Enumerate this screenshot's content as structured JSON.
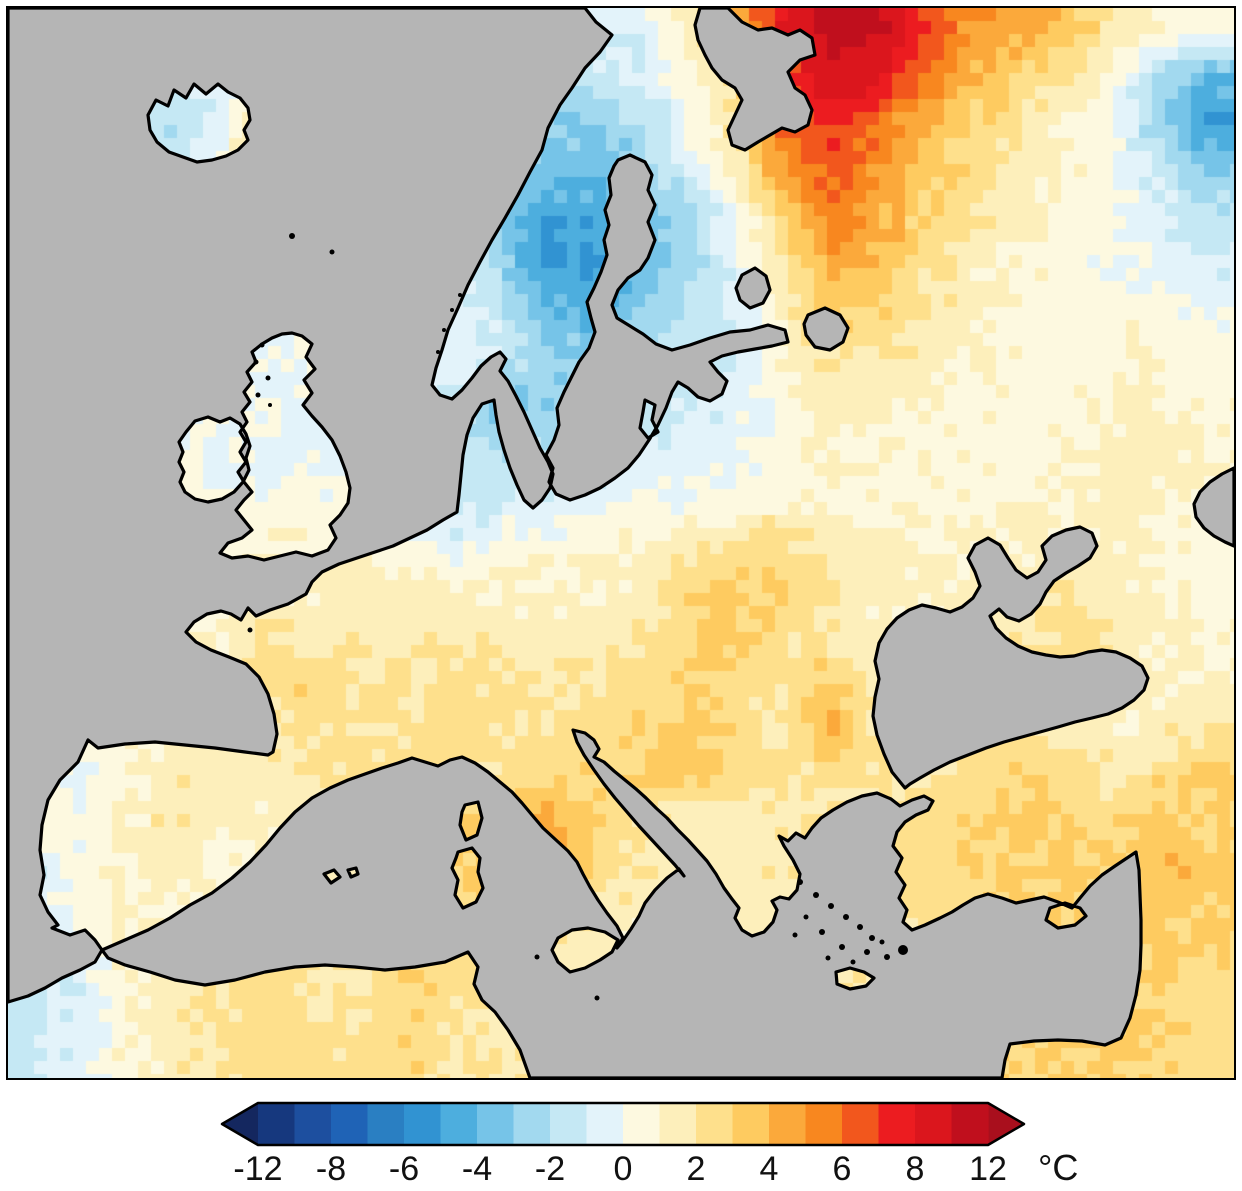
{
  "map": {
    "region": "Europe",
    "sea_color": "#b5b5b5",
    "coastline_color": "#000000",
    "frame_color": "#000000",
    "background_color": "#ffffff"
  },
  "chart_data": {
    "type": "heatmap",
    "region": "Europe",
    "variable": "temperature_anomaly",
    "colorbar": {
      "unit": "°C",
      "tick_labels": [
        "-12",
        "-8",
        "-6",
        "-4",
        "-2",
        "0",
        "2",
        "4",
        "6",
        "8",
        "12"
      ],
      "tick_values": [
        -12,
        -8,
        -6,
        -4,
        -2,
        0,
        2,
        4,
        6,
        8,
        12
      ],
      "bin_edges": [
        -12,
        -10,
        -8,
        -7,
        -6,
        -5,
        -4,
        -3,
        -2,
        -1,
        0,
        1,
        2,
        3,
        4,
        5,
        6,
        7,
        8,
        10,
        12
      ],
      "colors": [
        "#16387e",
        "#1d4f9f",
        "#1f63b6",
        "#2a7fc2",
        "#3193d2",
        "#4daede",
        "#76c4e8",
        "#a2d9ef",
        "#c5e8f4",
        "#e3f3fa",
        "#fdf9e0",
        "#fdefbb",
        "#fee08c",
        "#fecb60",
        "#fba93b",
        "#f8871f",
        "#f2571d",
        "#ec1c20",
        "#db161d",
        "#c00f1d",
        "#14275f",
        "#a90f1d"
      ],
      "arrow_left_color": "#14275f",
      "arrow_right_color": "#a90f1d",
      "legend_position": "bottom"
    },
    "grid": {
      "cols": 26,
      "rows": 23,
      "values": [
        [
          -1,
          -1,
          -1,
          -1,
          -1,
          -1.5,
          -2,
          -2,
          -2,
          -2,
          -2,
          -1.5,
          -1,
          -0.5,
          1.5,
          4,
          8,
          11,
          10.5,
          7,
          5,
          4.5,
          3.5,
          2,
          1,
          0.5
        ],
        [
          -1,
          -1,
          -1,
          -1.5,
          -1,
          -1,
          -1.5,
          -2,
          -2,
          -2,
          -2.5,
          -2,
          -1.5,
          -1,
          0.5,
          3,
          6,
          9,
          8.5,
          6,
          4,
          3,
          2,
          0.5,
          -2,
          -4
        ],
        [
          -1,
          -1,
          -1.5,
          -2,
          -0.5,
          2.5,
          -1,
          -1.5,
          -2,
          -2,
          -2.5,
          -3,
          -3,
          -2,
          0,
          2,
          6,
          7.5,
          6,
          4,
          3,
          2,
          1,
          0,
          -3,
          -5
        ],
        [
          -1,
          -1,
          -1,
          -1.5,
          0,
          2,
          -0.5,
          -1,
          -1.5,
          -1.5,
          -2,
          -3.5,
          -4,
          -2.5,
          -1,
          1.5,
          5,
          6.5,
          5,
          3.5,
          2.5,
          1.5,
          1,
          0.5,
          -1.5,
          -3
        ],
        [
          -0.5,
          -0.5,
          -0.5,
          -0.5,
          -0.5,
          -0.5,
          -0.5,
          -1,
          -1,
          -1,
          -3.5,
          -5,
          -4.5,
          -3.5,
          -2.5,
          0,
          3,
          5.5,
          4.5,
          3,
          2,
          1.2,
          0.8,
          0.3,
          -0.5,
          -1.5
        ],
        [
          -0.5,
          -0.5,
          -0.5,
          -0.5,
          -0.5,
          -0.5,
          -0.5,
          -0.5,
          -0.5,
          -0.5,
          -2.5,
          -5.5,
          -5,
          -3.5,
          -2.5,
          -0.5,
          2,
          4.5,
          4,
          2.5,
          1.5,
          1,
          0.5,
          0.2,
          -0.3,
          -1
        ],
        [
          -0.3,
          -0.3,
          -0.3,
          -0.3,
          -0.3,
          -0.3,
          -0.3,
          -0.3,
          -0.3,
          0,
          -1.5,
          -4,
          -4.5,
          -3,
          -2,
          -1,
          1.5,
          3.5,
          3,
          2,
          1.2,
          0.8,
          0.5,
          0.5,
          0.5,
          0
        ],
        [
          0,
          0,
          0,
          0,
          0,
          -0.2,
          0.2,
          0,
          0,
          -0.5,
          -1,
          -2.5,
          -3,
          -2.2,
          -1.5,
          -0.8,
          0.8,
          2.2,
          2,
          1.5,
          1,
          0.6,
          0.5,
          0.8,
          1,
          0.5
        ],
        [
          0,
          0,
          0,
          0.2,
          0,
          0.3,
          -0.3,
          -0.5,
          -0.5,
          -1,
          -3.5,
          -3,
          -2.5,
          -1.8,
          -1.2,
          -0.5,
          0.5,
          1.5,
          1.2,
          1,
          0.8,
          0.5,
          0.6,
          1,
          1.2,
          0.8
        ],
        [
          0,
          0,
          0.2,
          0.3,
          -0.3,
          0,
          -0.5,
          -0.8,
          -1,
          -1.5,
          -2.2,
          -1.8,
          -1.5,
          -1,
          -0.6,
          -0.2,
          0.4,
          1,
          0.8,
          0.8,
          0.6,
          0.5,
          0.8,
          1.2,
          1.5,
          1
        ],
        [
          0.2,
          0.2,
          0.3,
          0.5,
          0.2,
          0.3,
          0.3,
          0.6,
          -0.8,
          -1.5,
          -1.2,
          -0.8,
          -0.5,
          -0.3,
          0,
          0.3,
          0.8,
          0.8,
          1,
          0.8,
          0.6,
          0.8,
          1,
          1.5,
          1.2,
          0.8
        ],
        [
          0.3,
          0.3,
          0.4,
          0.5,
          0.6,
          0.7,
          0.8,
          1,
          0.5,
          -0.5,
          0.3,
          0.5,
          0.8,
          1,
          1.5,
          2,
          2.5,
          1.5,
          1.2,
          1,
          0.8,
          1,
          1.2,
          1.5,
          1,
          0.6
        ],
        [
          0.4,
          0.5,
          0.6,
          0.8,
          0.9,
          1,
          1.2,
          1.5,
          1.2,
          1,
          1.2,
          1,
          1.2,
          1.5,
          2.5,
          3.5,
          3,
          2,
          1.5,
          1.2,
          1.5,
          1.8,
          2,
          1.5,
          1,
          0.5
        ],
        [
          0.5,
          0.6,
          0.8,
          1,
          1.2,
          2.2,
          1.8,
          1.5,
          1.8,
          2,
          1.5,
          1.2,
          1.5,
          2,
          3,
          3.5,
          2.5,
          1.5,
          1,
          1,
          1.5,
          2,
          2.5,
          2,
          1.2,
          0.8
        ],
        [
          0.6,
          0.8,
          1,
          1.2,
          1.5,
          2.5,
          2.8,
          2.2,
          2,
          2.5,
          2,
          1.8,
          2,
          2.5,
          3,
          2.5,
          2,
          3.5,
          1.5,
          1,
          2,
          2.5,
          2,
          1.5,
          1,
          1.2
        ],
        [
          0.5,
          0.8,
          0.5,
          1,
          1.5,
          2,
          2.5,
          2,
          2.2,
          2.5,
          2,
          2.2,
          2.5,
          3,
          3.5,
          2.5,
          2,
          4,
          2,
          1.5,
          2.5,
          2,
          1.5,
          1.2,
          1.5,
          2
        ],
        [
          0,
          -0.5,
          0.8,
          1.5,
          1.8,
          1.5,
          2,
          2.5,
          2,
          2.5,
          2.2,
          2.5,
          3,
          3.5,
          3,
          2.5,
          2,
          2.5,
          2,
          2,
          2.5,
          3,
          2.5,
          2,
          2.5,
          3
        ],
        [
          0.3,
          0.5,
          1.2,
          1.8,
          1.5,
          1.2,
          1.5,
          2,
          2.2,
          3,
          3.5,
          4.5,
          3,
          2,
          1.5,
          1.5,
          1.8,
          2,
          2.2,
          2.5,
          3,
          3.5,
          3,
          2.5,
          3.5,
          3
        ],
        [
          -1,
          0.3,
          1,
          1.5,
          0.5,
          1.2,
          1.8,
          2,
          2.5,
          3,
          4,
          4.5,
          2.5,
          1.8,
          1.5,
          1.5,
          1.8,
          2,
          2.2,
          2.5,
          2.8,
          3,
          3.2,
          3,
          4,
          3.5
        ],
        [
          -0.8,
          0.5,
          1.2,
          1,
          0.8,
          1.2,
          1.5,
          1.8,
          2.5,
          2,
          2.5,
          3,
          2,
          1.2,
          1,
          1.2,
          1.5,
          1.8,
          2,
          2.2,
          2.5,
          2.8,
          3,
          2.8,
          3.5,
          3
        ],
        [
          -1.2,
          -0.5,
          0.8,
          1.5,
          2,
          2.5,
          2,
          1.8,
          3.5,
          2.5,
          2,
          1.5,
          1.2,
          1,
          1,
          1.2,
          1.5,
          1.5,
          1.8,
          2,
          2.2,
          2.5,
          2.8,
          3,
          3.2,
          2.8
        ],
        [
          -1.5,
          -0.8,
          0.5,
          1.8,
          2.2,
          2.8,
          2.2,
          2,
          3,
          2.2,
          1.8,
          1.5,
          1.2,
          1,
          1.2,
          1.5,
          1.8,
          2,
          2,
          2.2,
          2.5,
          2.8,
          3,
          3.2,
          3,
          2.5
        ],
        [
          -1.2,
          -0.5,
          0.8,
          1.5,
          2,
          2.5,
          2.5,
          2.2,
          2.8,
          2,
          1.8,
          1.5,
          1.2,
          1.2,
          1.5,
          1.8,
          2,
          2,
          2.2,
          2.5,
          2.8,
          3,
          3,
          3.2,
          2.8,
          2.5
        ]
      ]
    }
  }
}
